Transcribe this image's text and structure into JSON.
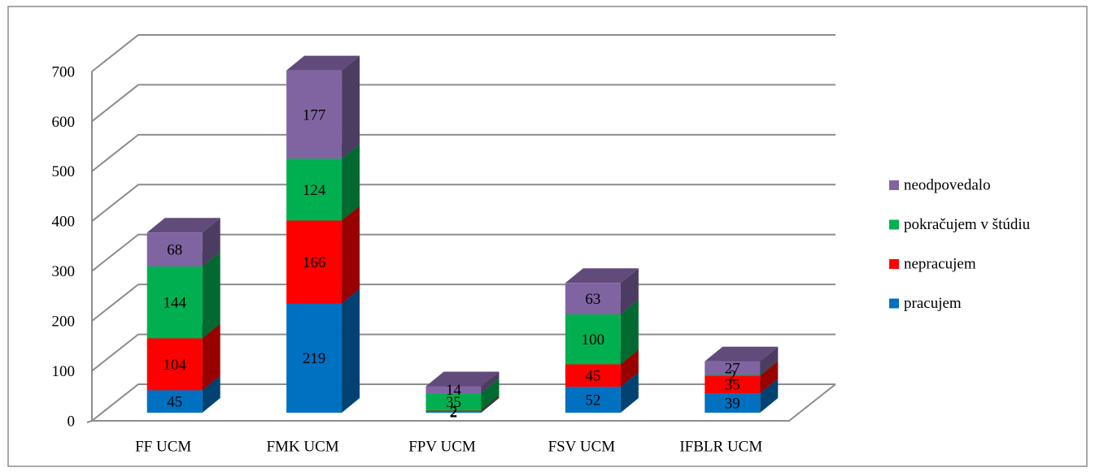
{
  "chart_data": {
    "type": "bar3d_stacked",
    "categories": [
      "FF UCM",
      "FMK UCM",
      "FPV UCM",
      "FSV UCM",
      "IFBLR UCM"
    ],
    "series": [
      {
        "name": "pracujem",
        "color": "#0070c0",
        "values": [
          45,
          219,
          2,
          52,
          39
        ]
      },
      {
        "name": "nepracujem",
        "color": "#ff0000",
        "values": [
          104,
          166,
          2,
          45,
          35
        ]
      },
      {
        "name": "pokračujem v štúdiu",
        "color": "#00b050",
        "values": [
          144,
          124,
          35,
          100,
          2
        ]
      },
      {
        "name": "neodpovedalo",
        "color": "#8064a2",
        "values": [
          68,
          177,
          14,
          63,
          27
        ]
      }
    ],
    "ylim": [
      0,
      700
    ],
    "yticks": [
      0,
      100,
      200,
      300,
      400,
      500,
      600,
      700
    ],
    "grid": true,
    "legend": "right"
  }
}
